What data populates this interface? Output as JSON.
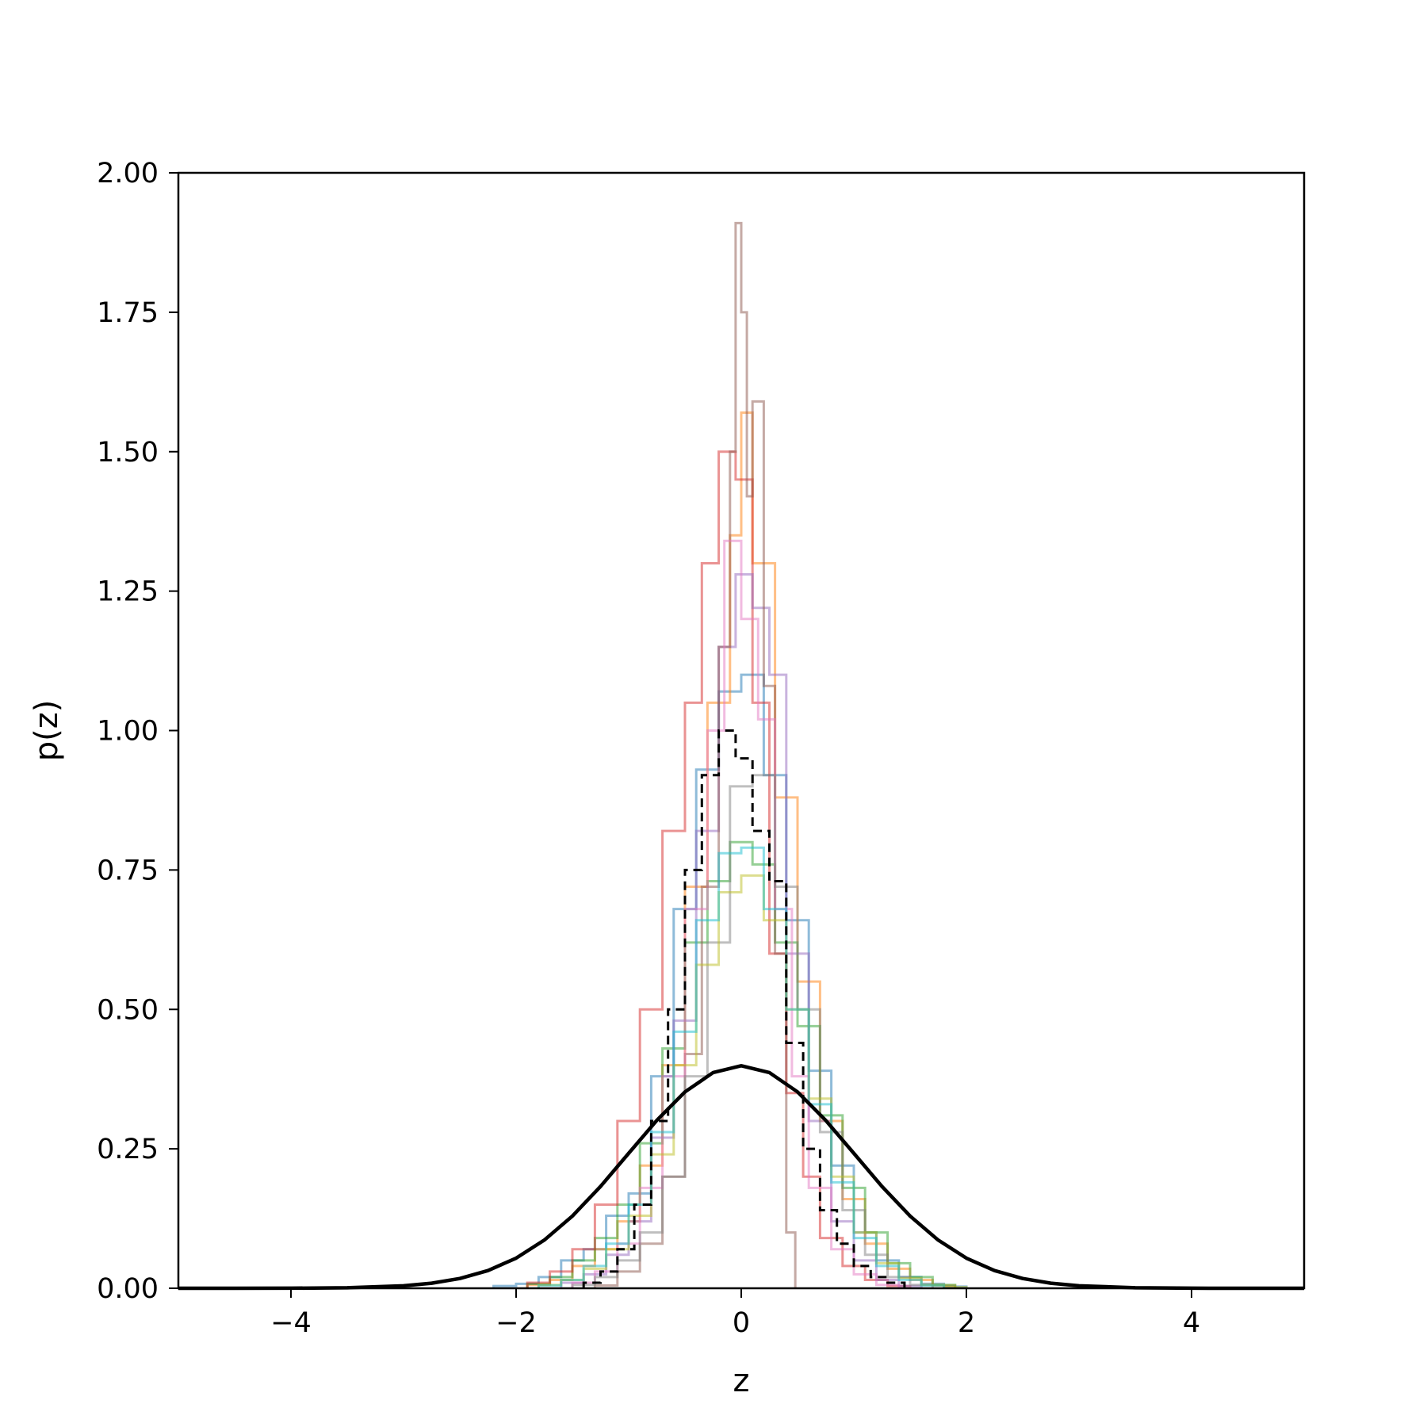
{
  "chart_data": {
    "type": "line",
    "title": "",
    "xlabel": "z",
    "ylabel": "p(z)",
    "xlim": [
      -5,
      5
    ],
    "ylim": [
      0,
      2.0
    ],
    "grid": false,
    "legend": "none",
    "x_ticks": [
      -4,
      -2,
      0,
      2,
      4
    ],
    "x_tick_labels": [
      "−4",
      "−2",
      "0",
      "2",
      "4"
    ],
    "y_ticks": [
      0,
      0.25,
      0.5,
      0.75,
      1.0,
      1.25,
      1.5,
      1.75,
      2.0
    ],
    "y_tick_labels": [
      "0.00",
      "0.25",
      "0.50",
      "0.75",
      "1.00",
      "1.25",
      "1.50",
      "1.75",
      "2.00"
    ],
    "reference_curve": {
      "style": "solid",
      "color": "#000000",
      "x": [
        -5,
        -4.5,
        -4,
        -3.5,
        -3,
        -2.75,
        -2.5,
        -2.25,
        -2,
        -1.75,
        -1.5,
        -1.25,
        -1,
        -0.75,
        -0.5,
        -0.25,
        0,
        0.25,
        0.5,
        0.75,
        1,
        1.25,
        1.5,
        1.75,
        2,
        2.25,
        2.5,
        2.75,
        3,
        3.5,
        4,
        4.5,
        5
      ],
      "y": [
        0.0,
        0.0,
        0.0001,
        0.0009,
        0.0044,
        0.0091,
        0.0175,
        0.0317,
        0.054,
        0.0863,
        0.1295,
        0.1826,
        0.242,
        0.3011,
        0.3521,
        0.3867,
        0.3989,
        0.3867,
        0.3521,
        0.3011,
        0.242,
        0.1826,
        0.1295,
        0.0863,
        0.054,
        0.0317,
        0.0175,
        0.0091,
        0.0044,
        0.0009,
        0.0001,
        0.0,
        0.0
      ]
    },
    "mean_histogram": {
      "style": "dashed",
      "color": "#000000",
      "bin_edges": [
        -1.4,
        -1.25,
        -1.1,
        -0.95,
        -0.8,
        -0.65,
        -0.5,
        -0.35,
        -0.2,
        -0.05,
        0.1,
        0.25,
        0.4,
        0.55,
        0.7,
        0.85,
        1.0,
        1.15,
        1.3,
        1.45
      ],
      "values": [
        0.01,
        0.03,
        0.07,
        0.15,
        0.3,
        0.5,
        0.75,
        0.92,
        1.0,
        0.95,
        0.82,
        0.73,
        0.44,
        0.25,
        0.14,
        0.08,
        0.04,
        0.02,
        0.01
      ]
    },
    "series": [
      {
        "color": "#1f77b4",
        "bin_edges": [
          -2.2,
          -2.0,
          -1.8,
          -1.6,
          -1.4,
          -1.2,
          -1.0,
          -0.8,
          -0.6,
          -0.4,
          -0.2,
          0.0,
          0.2,
          0.4,
          0.6,
          0.8,
          1.0,
          1.2,
          1.4,
          1.6,
          1.8,
          2.0
        ],
        "values": [
          0.004,
          0.008,
          0.02,
          0.05,
          0.07,
          0.13,
          0.17,
          0.38,
          0.68,
          0.93,
          1.07,
          1.1,
          0.92,
          0.66,
          0.39,
          0.22,
          0.1,
          0.05,
          0.02,
          0.008,
          0.003
        ]
      },
      {
        "color": "#ff7f0e",
        "bin_edges": [
          -1.9,
          -1.7,
          -1.5,
          -1.3,
          -1.1,
          -0.9,
          -0.7,
          -0.5,
          -0.3,
          -0.1,
          0.0,
          0.1,
          0.3,
          0.5,
          0.7,
          0.9,
          1.1,
          1.3,
          1.5,
          1.7,
          1.9
        ],
        "values": [
          0.006,
          0.015,
          0.04,
          0.07,
          0.12,
          0.22,
          0.4,
          0.72,
          1.05,
          1.35,
          1.57,
          1.3,
          0.88,
          0.55,
          0.3,
          0.16,
          0.08,
          0.035,
          0.015,
          0.005
        ]
      },
      {
        "color": "#2ca02c",
        "bin_edges": [
          -1.9,
          -1.7,
          -1.5,
          -1.3,
          -1.1,
          -0.9,
          -0.7,
          -0.5,
          -0.3,
          -0.1,
          0.1,
          0.3,
          0.5,
          0.7,
          0.9,
          1.1,
          1.3,
          1.5,
          1.7,
          1.9
        ],
        "values": [
          0.008,
          0.02,
          0.05,
          0.09,
          0.15,
          0.26,
          0.43,
          0.62,
          0.73,
          0.8,
          0.76,
          0.62,
          0.47,
          0.31,
          0.18,
          0.1,
          0.045,
          0.02,
          0.006
        ]
      },
      {
        "color": "#d62728",
        "bin_edges": [
          -1.9,
          -1.7,
          -1.5,
          -1.3,
          -1.1,
          -0.9,
          -0.7,
          -0.5,
          -0.35,
          -0.2,
          -0.05,
          0.1,
          0.25,
          0.4,
          0.55,
          0.7,
          0.9,
          1.1,
          1.3,
          1.5
        ],
        "values": [
          0.01,
          0.03,
          0.07,
          0.15,
          0.3,
          0.5,
          0.82,
          1.05,
          1.3,
          1.5,
          1.45,
          1.05,
          0.6,
          0.35,
          0.2,
          0.09,
          0.04,
          0.015,
          0.004
        ]
      },
      {
        "color": "#9467bd",
        "bin_edges": [
          -1.6,
          -1.4,
          -1.2,
          -1.0,
          -0.8,
          -0.6,
          -0.4,
          -0.2,
          -0.05,
          0.1,
          0.25,
          0.4,
          0.6,
          0.8,
          1.0,
          1.2,
          1.4,
          1.6
        ],
        "values": [
          0.01,
          0.025,
          0.06,
          0.12,
          0.27,
          0.48,
          0.82,
          1.15,
          1.28,
          1.22,
          1.1,
          0.6,
          0.3,
          0.12,
          0.05,
          0.015,
          0.004
        ]
      },
      {
        "color": "#8c564b",
        "bin_edges": [
          -1.3,
          -1.1,
          -0.9,
          -0.7,
          -0.5,
          -0.35,
          -0.2,
          -0.1,
          -0.05,
          0.0,
          0.05,
          0.1,
          0.2,
          0.3,
          0.4,
          0.48
        ],
        "values": [
          0.005,
          0.03,
          0.08,
          0.2,
          0.42,
          0.72,
          1.15,
          1.5,
          1.91,
          1.75,
          1.42,
          1.59,
          1.08,
          0.6,
          0.1
        ]
      },
      {
        "color": "#e377c2",
        "bin_edges": [
          -1.5,
          -1.3,
          -1.1,
          -0.9,
          -0.7,
          -0.5,
          -0.3,
          -0.15,
          0.0,
          0.15,
          0.3,
          0.45,
          0.6,
          0.8,
          1.0,
          1.2,
          1.4
        ],
        "values": [
          0.01,
          0.03,
          0.08,
          0.18,
          0.38,
          0.68,
          1.0,
          1.34,
          1.2,
          1.02,
          0.68,
          0.38,
          0.18,
          0.07,
          0.025,
          0.006
        ]
      },
      {
        "color": "#7f7f7f",
        "bin_edges": [
          -1.5,
          -1.3,
          -1.1,
          -0.9,
          -0.7,
          -0.5,
          -0.3,
          -0.1,
          0.1,
          0.3,
          0.5,
          0.7,
          0.9,
          1.1,
          1.3,
          1.5,
          1.7
        ],
        "values": [
          0.006,
          0.02,
          0.05,
          0.1,
          0.2,
          0.38,
          0.62,
          0.9,
          0.92,
          0.72,
          0.5,
          0.28,
          0.14,
          0.06,
          0.02,
          0.006
        ]
      },
      {
        "color": "#bcbd22",
        "bin_edges": [
          -1.8,
          -1.6,
          -1.4,
          -1.2,
          -1.0,
          -0.8,
          -0.6,
          -0.4,
          -0.2,
          0.0,
          0.2,
          0.4,
          0.6,
          0.8,
          1.0,
          1.2,
          1.4,
          1.6,
          1.8,
          2.0
        ],
        "values": [
          0.006,
          0.015,
          0.035,
          0.07,
          0.13,
          0.24,
          0.4,
          0.58,
          0.71,
          0.74,
          0.66,
          0.5,
          0.34,
          0.2,
          0.1,
          0.045,
          0.018,
          0.006,
          0.002
        ]
      },
      {
        "color": "#17becf",
        "bin_edges": [
          -1.8,
          -1.6,
          -1.4,
          -1.2,
          -1.0,
          -0.8,
          -0.6,
          -0.4,
          -0.2,
          0.0,
          0.2,
          0.4,
          0.6,
          0.8,
          1.0,
          1.2,
          1.4,
          1.6,
          1.8
        ],
        "values": [
          0.005,
          0.015,
          0.04,
          0.08,
          0.15,
          0.28,
          0.46,
          0.66,
          0.78,
          0.79,
          0.68,
          0.5,
          0.33,
          0.19,
          0.09,
          0.04,
          0.015,
          0.005
        ]
      }
    ]
  }
}
